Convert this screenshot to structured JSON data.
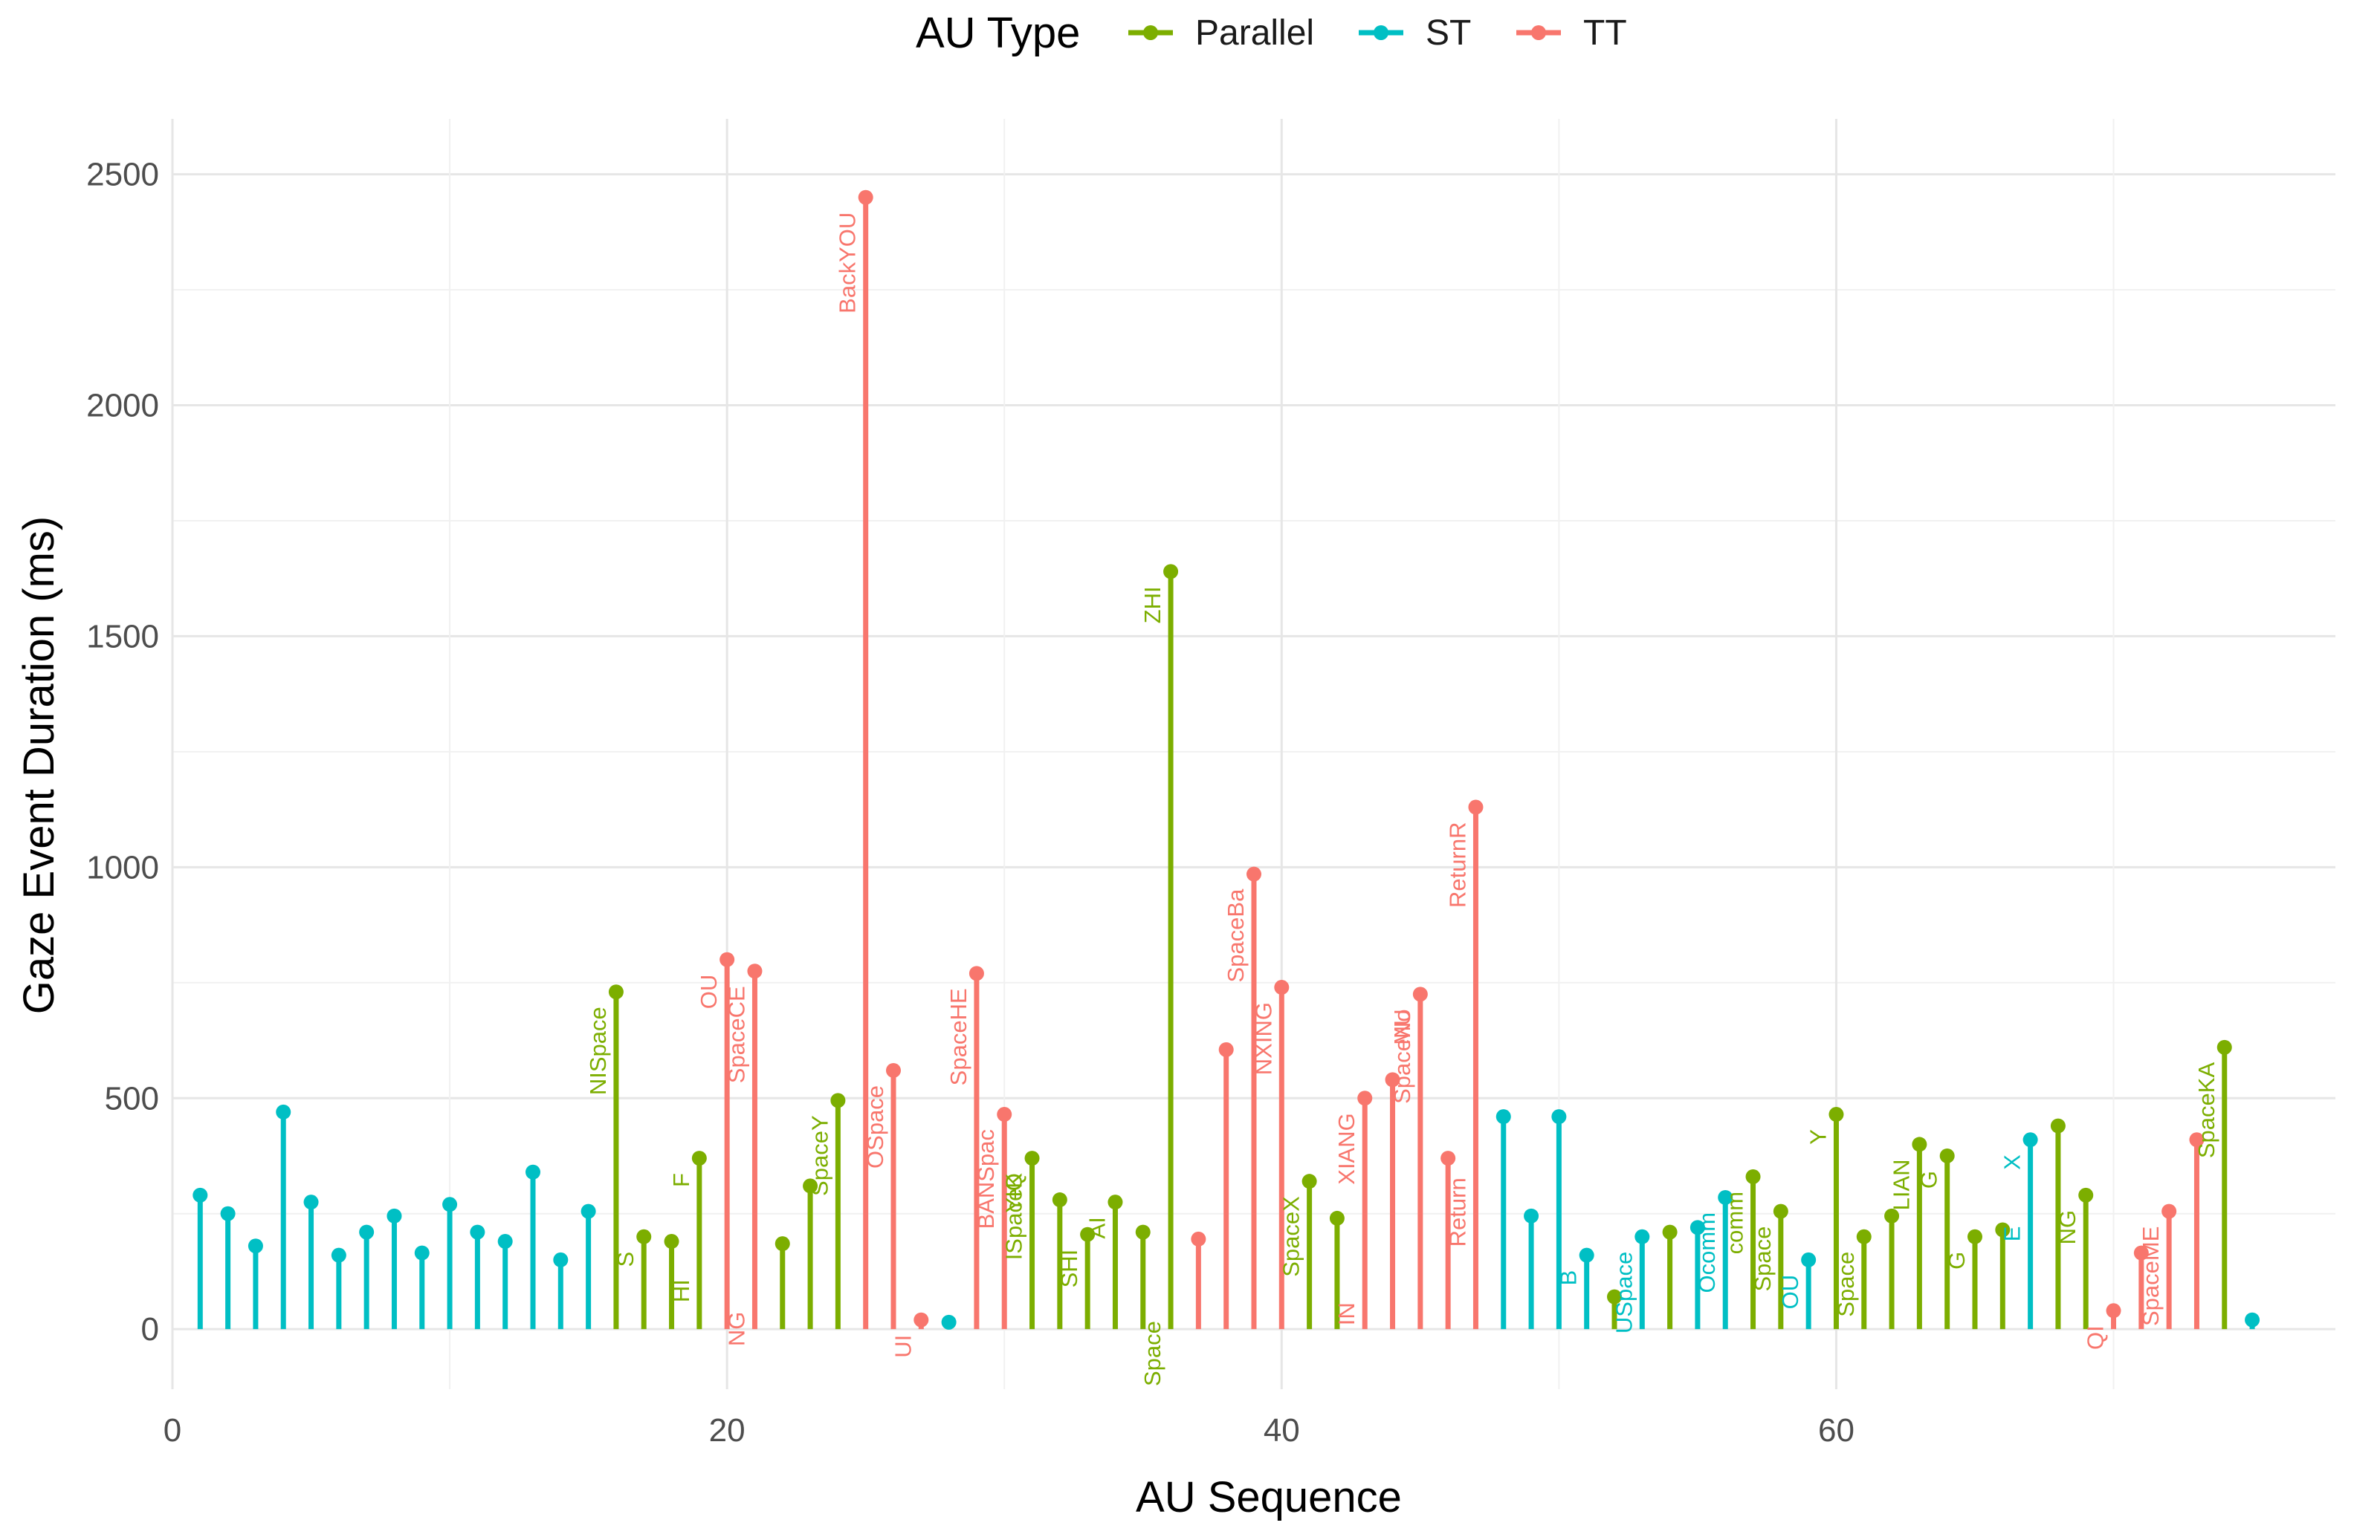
{
  "chart_data": {
    "type": "lollipop",
    "title": "",
    "xlabel": "AU Sequence",
    "ylabel": "Gaze Event Duration (ms)",
    "xlim": [
      0,
      78
    ],
    "ylim": [
      -130,
      2620
    ],
    "xticks": [
      0,
      20,
      40,
      60
    ],
    "yticks": [
      0,
      500,
      1000,
      1500,
      2000,
      2500
    ],
    "legend": {
      "title": "AU Type",
      "position": "top",
      "entries": [
        {
          "name": "Parallel",
          "color": "#7cae00"
        },
        {
          "name": "ST",
          "color": "#00bfc4"
        },
        {
          "name": "TT",
          "color": "#f8766d"
        }
      ]
    },
    "points": [
      {
        "x": 1,
        "y": 290,
        "type": "ST",
        "label": ""
      },
      {
        "x": 2,
        "y": 250,
        "type": "ST",
        "label": ""
      },
      {
        "x": 3,
        "y": 180,
        "type": "ST",
        "label": ""
      },
      {
        "x": 4,
        "y": 470,
        "type": "ST",
        "label": ""
      },
      {
        "x": 5,
        "y": 275,
        "type": "ST",
        "label": ""
      },
      {
        "x": 6,
        "y": 160,
        "type": "ST",
        "label": ""
      },
      {
        "x": 7,
        "y": 210,
        "type": "ST",
        "label": ""
      },
      {
        "x": 8,
        "y": 245,
        "type": "ST",
        "label": ""
      },
      {
        "x": 9,
        "y": 165,
        "type": "ST",
        "label": ""
      },
      {
        "x": 10,
        "y": 270,
        "type": "ST",
        "label": ""
      },
      {
        "x": 11,
        "y": 210,
        "type": "ST",
        "label": ""
      },
      {
        "x": 12,
        "y": 190,
        "type": "ST",
        "label": ""
      },
      {
        "x": 13,
        "y": 340,
        "type": "ST",
        "label": ""
      },
      {
        "x": 14,
        "y": 150,
        "type": "ST",
        "label": ""
      },
      {
        "x": 15,
        "y": 255,
        "type": "ST",
        "label": ""
      },
      {
        "x": 16,
        "y": 730,
        "type": "Parallel",
        "label": "NISpace"
      },
      {
        "x": 17,
        "y": 200,
        "type": "Parallel",
        "label": "S"
      },
      {
        "x": 18,
        "y": 190,
        "type": "Parallel",
        "label": ""
      },
      {
        "x": 19,
        "y": 370,
        "type": "Parallel",
        "label": "F"
      },
      {
        "x": 19,
        "y": 140,
        "type": "Parallel",
        "label": "HI",
        "hidden": true
      },
      {
        "x": 20,
        "y": 800,
        "type": "TT",
        "label": "OU"
      },
      {
        "x": 21,
        "y": 775,
        "type": "TT",
        "label": "SpaceCE"
      },
      {
        "x": 21,
        "y": 70,
        "type": "TT",
        "label": "NG",
        "hidden": true
      },
      {
        "x": 22,
        "y": 185,
        "type": "Parallel",
        "label": ""
      },
      {
        "x": 23,
        "y": 310,
        "type": "Parallel",
        "label": ""
      },
      {
        "x": 24,
        "y": 495,
        "type": "Parallel",
        "label": "SpaceY"
      },
      {
        "x": 25,
        "y": 2450,
        "type": "TT",
        "label": "BackYOU"
      },
      {
        "x": 26,
        "y": 560,
        "type": "TT",
        "label": "OSpace"
      },
      {
        "x": 27,
        "y": 20,
        "type": "TT",
        "label": "UI"
      },
      {
        "x": 28,
        "y": 15,
        "type": "ST",
        "label": ""
      },
      {
        "x": 29,
        "y": 770,
        "type": "TT",
        "label": "SpaceHE"
      },
      {
        "x": 30,
        "y": 465,
        "type": "TT",
        "label": "BANSpac"
      },
      {
        "x": 31,
        "y": 370,
        "type": "Parallel",
        "label": "ISpaceK"
      },
      {
        "x": 31,
        "y": 370,
        "type": "Parallel",
        "label": "YIQ",
        "hidden": true
      },
      {
        "x": 32,
        "y": 280,
        "type": "Parallel",
        "label": ""
      },
      {
        "x": 33,
        "y": 205,
        "type": "Parallel",
        "label": "SHI"
      },
      {
        "x": 34,
        "y": 275,
        "type": "Parallel",
        "label": "AI"
      },
      {
        "x": 35,
        "y": 210,
        "type": "Parallel",
        "label": ""
      },
      {
        "x": 36,
        "y": 1640,
        "type": "Parallel",
        "label": "ZHI"
      },
      {
        "x": 36,
        "y": 50,
        "type": "Parallel",
        "label": "Space",
        "hidden": true
      },
      {
        "x": 37,
        "y": 195,
        "type": "TT",
        "label": ""
      },
      {
        "x": 38,
        "y": 605,
        "type": "TT",
        "label": ""
      },
      {
        "x": 39,
        "y": 985,
        "type": "TT",
        "label": "SpaceBa"
      },
      {
        "x": 40,
        "y": 740,
        "type": "TT",
        "label": "NXING"
      },
      {
        "x": 41,
        "y": 320,
        "type": "Parallel",
        "label": "SpaceX"
      },
      {
        "x": 42,
        "y": 240,
        "type": "Parallel",
        "label": ""
      },
      {
        "x": 43,
        "y": 500,
        "type": "TT",
        "label": "XIANG"
      },
      {
        "x": 43,
        "y": 90,
        "type": "TT",
        "label": "IN",
        "hidden": true
      },
      {
        "x": 44,
        "y": 540,
        "type": "TT",
        "label": ""
      },
      {
        "x": 45,
        "y": 725,
        "type": "TT",
        "label": "MU"
      },
      {
        "x": 45,
        "y": 725,
        "type": "TT",
        "label": "SpaceNo",
        "hidden": true
      },
      {
        "x": 46,
        "y": 370,
        "type": "TT",
        "label": ""
      },
      {
        "x": 47,
        "y": 1130,
        "type": "TT",
        "label": "ReturnR"
      },
      {
        "x": 47,
        "y": 360,
        "type": "TT",
        "label": "Return",
        "hidden": true
      },
      {
        "x": 48,
        "y": 460,
        "type": "ST",
        "label": ""
      },
      {
        "x": 49,
        "y": 245,
        "type": "ST",
        "label": ""
      },
      {
        "x": 50,
        "y": 460,
        "type": "ST",
        "label": ""
      },
      {
        "x": 51,
        "y": 160,
        "type": "ST",
        "label": "B"
      },
      {
        "x": 52,
        "y": 70,
        "type": "Parallel",
        "label": ""
      },
      {
        "x": 53,
        "y": 200,
        "type": "ST",
        "label": "USpace"
      },
      {
        "x": 54,
        "y": 210,
        "type": "Parallel",
        "label": ""
      },
      {
        "x": 55,
        "y": 220,
        "type": "ST",
        "label": ""
      },
      {
        "x": 56,
        "y": 285,
        "type": "ST",
        "label": "Ocomm"
      },
      {
        "x": 57,
        "y": 330,
        "type": "Parallel",
        "label": "comm"
      },
      {
        "x": 58,
        "y": 255,
        "type": "Parallel",
        "label": "Space"
      },
      {
        "x": 59,
        "y": 150,
        "type": "ST",
        "label": "OU"
      },
      {
        "x": 60,
        "y": 465,
        "type": "Parallel",
        "label": "Y"
      },
      {
        "x": 61,
        "y": 200,
        "type": "Parallel",
        "label": "Space"
      },
      {
        "x": 62,
        "y": 245,
        "type": "Parallel",
        "label": ""
      },
      {
        "x": 63,
        "y": 400,
        "type": "Parallel",
        "label": "LIAN"
      },
      {
        "x": 64,
        "y": 375,
        "type": "Parallel",
        "label": "G"
      },
      {
        "x": 65,
        "y": 200,
        "type": "Parallel",
        "label": "G"
      },
      {
        "x": 66,
        "y": 215,
        "type": "Parallel",
        "label": ""
      },
      {
        "x": 67,
        "y": 410,
        "type": "ST",
        "label": "X"
      },
      {
        "x": 67,
        "y": 255,
        "type": "ST",
        "label": "E",
        "hidden": true
      },
      {
        "x": 68,
        "y": 440,
        "type": "Parallel",
        "label": ""
      },
      {
        "x": 69,
        "y": 290,
        "type": "Parallel",
        "label": "NG"
      },
      {
        "x": 70,
        "y": 40,
        "type": "TT",
        "label": "QI"
      },
      {
        "x": 71,
        "y": 165,
        "type": "TT",
        "label": ""
      },
      {
        "x": 72,
        "y": 255,
        "type": "TT",
        "label": "SpaceME"
      },
      {
        "x": 73,
        "y": 410,
        "type": "TT",
        "label": ""
      },
      {
        "x": 74,
        "y": 610,
        "type": "Parallel",
        "label": "SpaceKA"
      },
      {
        "x": 75,
        "y": 20,
        "type": "ST",
        "label": ""
      }
    ]
  }
}
